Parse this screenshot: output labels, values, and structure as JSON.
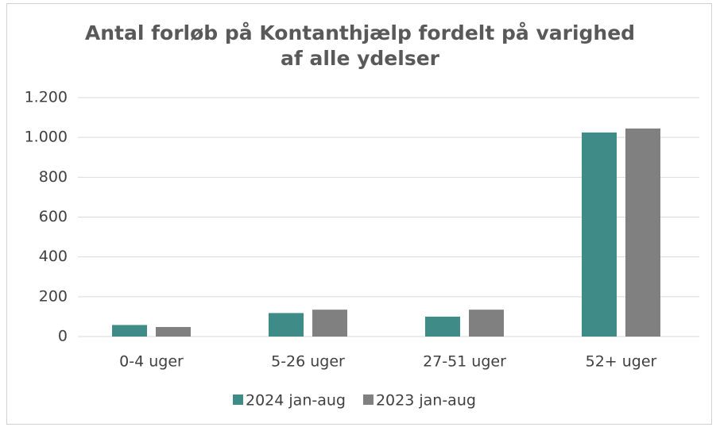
{
  "chart_data": {
    "type": "bar",
    "title": "Antal forløb på Kontanthjælp fordelt på varighed af alle ydelser",
    "categories": [
      "0-4 uger",
      "5-26 uger",
      "27-51 uger",
      "52+ uger"
    ],
    "series": [
      {
        "name": "2024 jan-aug",
        "color": "#3f8b87",
        "values": [
          58,
          118,
          100,
          1025
        ]
      },
      {
        "name": "2023 jan-aug",
        "color": "#808080",
        "values": [
          48,
          135,
          135,
          1045
        ]
      }
    ],
    "ylim": [
      0,
      1200
    ],
    "yticks": [
      0,
      200,
      400,
      600,
      800,
      {
        "value": 1000,
        "label": "1.000"
      },
      {
        "value": 1200,
        "label": "1.200"
      }
    ],
    "grid": true,
    "legend": "bottom"
  }
}
